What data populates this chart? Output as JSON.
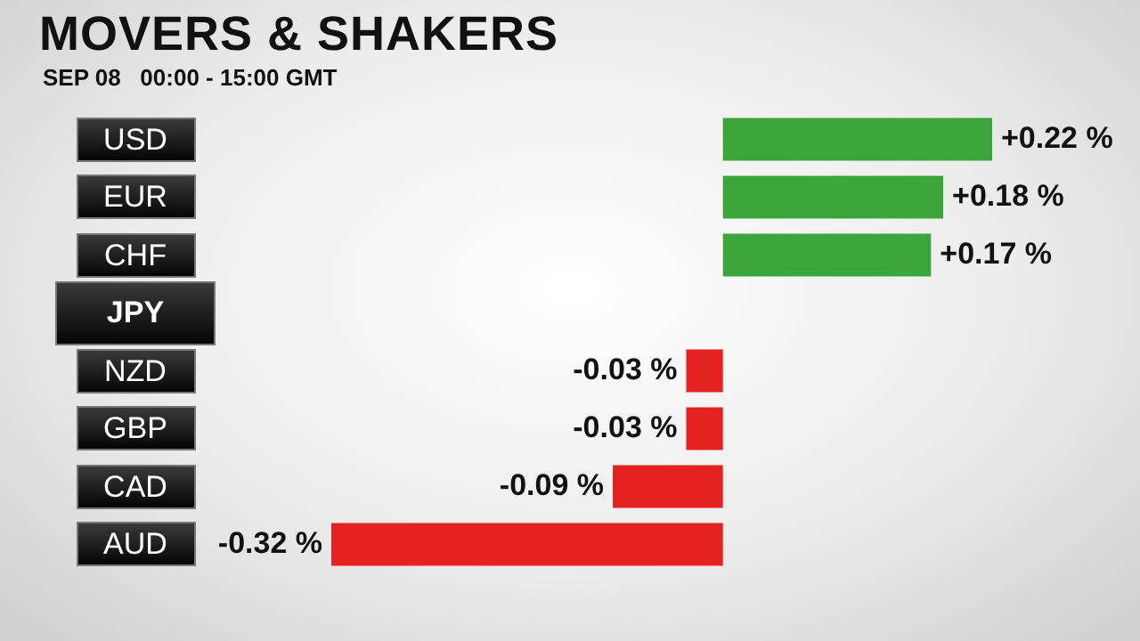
{
  "chart_data": {
    "type": "bar",
    "title": "MOVERS & SHAKERS",
    "subtitle": "SEP 08   00:00 - 15:00 GMT",
    "orientation": "horizontal",
    "categories": [
      "USD",
      "EUR",
      "CHF",
      "JPY",
      "NZD",
      "GBP",
      "CAD",
      "AUD"
    ],
    "values": [
      0.22,
      0.18,
      0.17,
      null,
      -0.03,
      -0.03,
      -0.09,
      -0.32
    ],
    "colors": [
      "#3ba53b",
      "#3ba53b",
      "#3ba53b",
      "#888888",
      "#e52222",
      "#e52222",
      "#e52222",
      "#e52222"
    ],
    "value_labels": [
      "+0.22 %",
      "+0.18 %",
      "+0.17 %",
      null,
      "-0.03 %",
      "-0.03 %",
      "-0.09 %",
      "-0.32 %"
    ]
  }
}
